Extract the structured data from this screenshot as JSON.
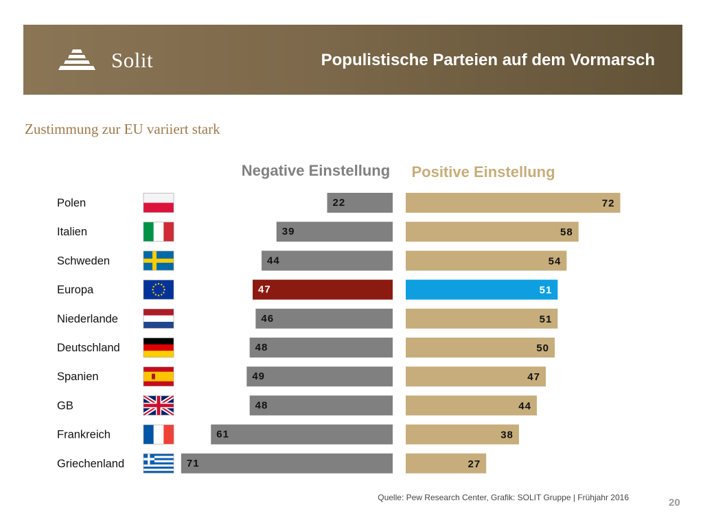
{
  "header": {
    "logo_text": "Solit",
    "title": "Populistische Parteien auf dem Vormarsch"
  },
  "subtitle": "Zustimmung zur EU variiert stark",
  "chart_data": {
    "type": "bar",
    "orientation": "horizontal-diverging",
    "categories": [
      "Polen",
      "Italien",
      "Schweden",
      "Europa",
      "Niederlande",
      "Deutschland",
      "Spanien",
      "GB",
      "Frankreich",
      "Griechenland"
    ],
    "flags": [
      "poland-flag",
      "italy-flag",
      "sweden-flag",
      "eu-flag",
      "netherlands-flag",
      "germany-flag",
      "spain-flag",
      "uk-flag",
      "france-flag",
      "greece-flag"
    ],
    "series": [
      {
        "name": "Negative Einstellung",
        "values": [
          22,
          39,
          44,
          47,
          46,
          48,
          49,
          48,
          61,
          71
        ],
        "color": "#808080"
      },
      {
        "name": "Positive Einstellung",
        "values": [
          72,
          58,
          54,
          51,
          51,
          50,
          47,
          44,
          38,
          27
        ],
        "color": "#c6ad7b"
      }
    ],
    "highlight": {
      "category": "Europa",
      "negative_color": "#8b1a10",
      "positive_color": "#0e9fe0"
    },
    "xlim": [
      0,
      75
    ]
  },
  "source": "Quelle: Pew Research Center, Grafik: SOLIT Gruppe | Frühjahr 2016",
  "page_number": "20"
}
